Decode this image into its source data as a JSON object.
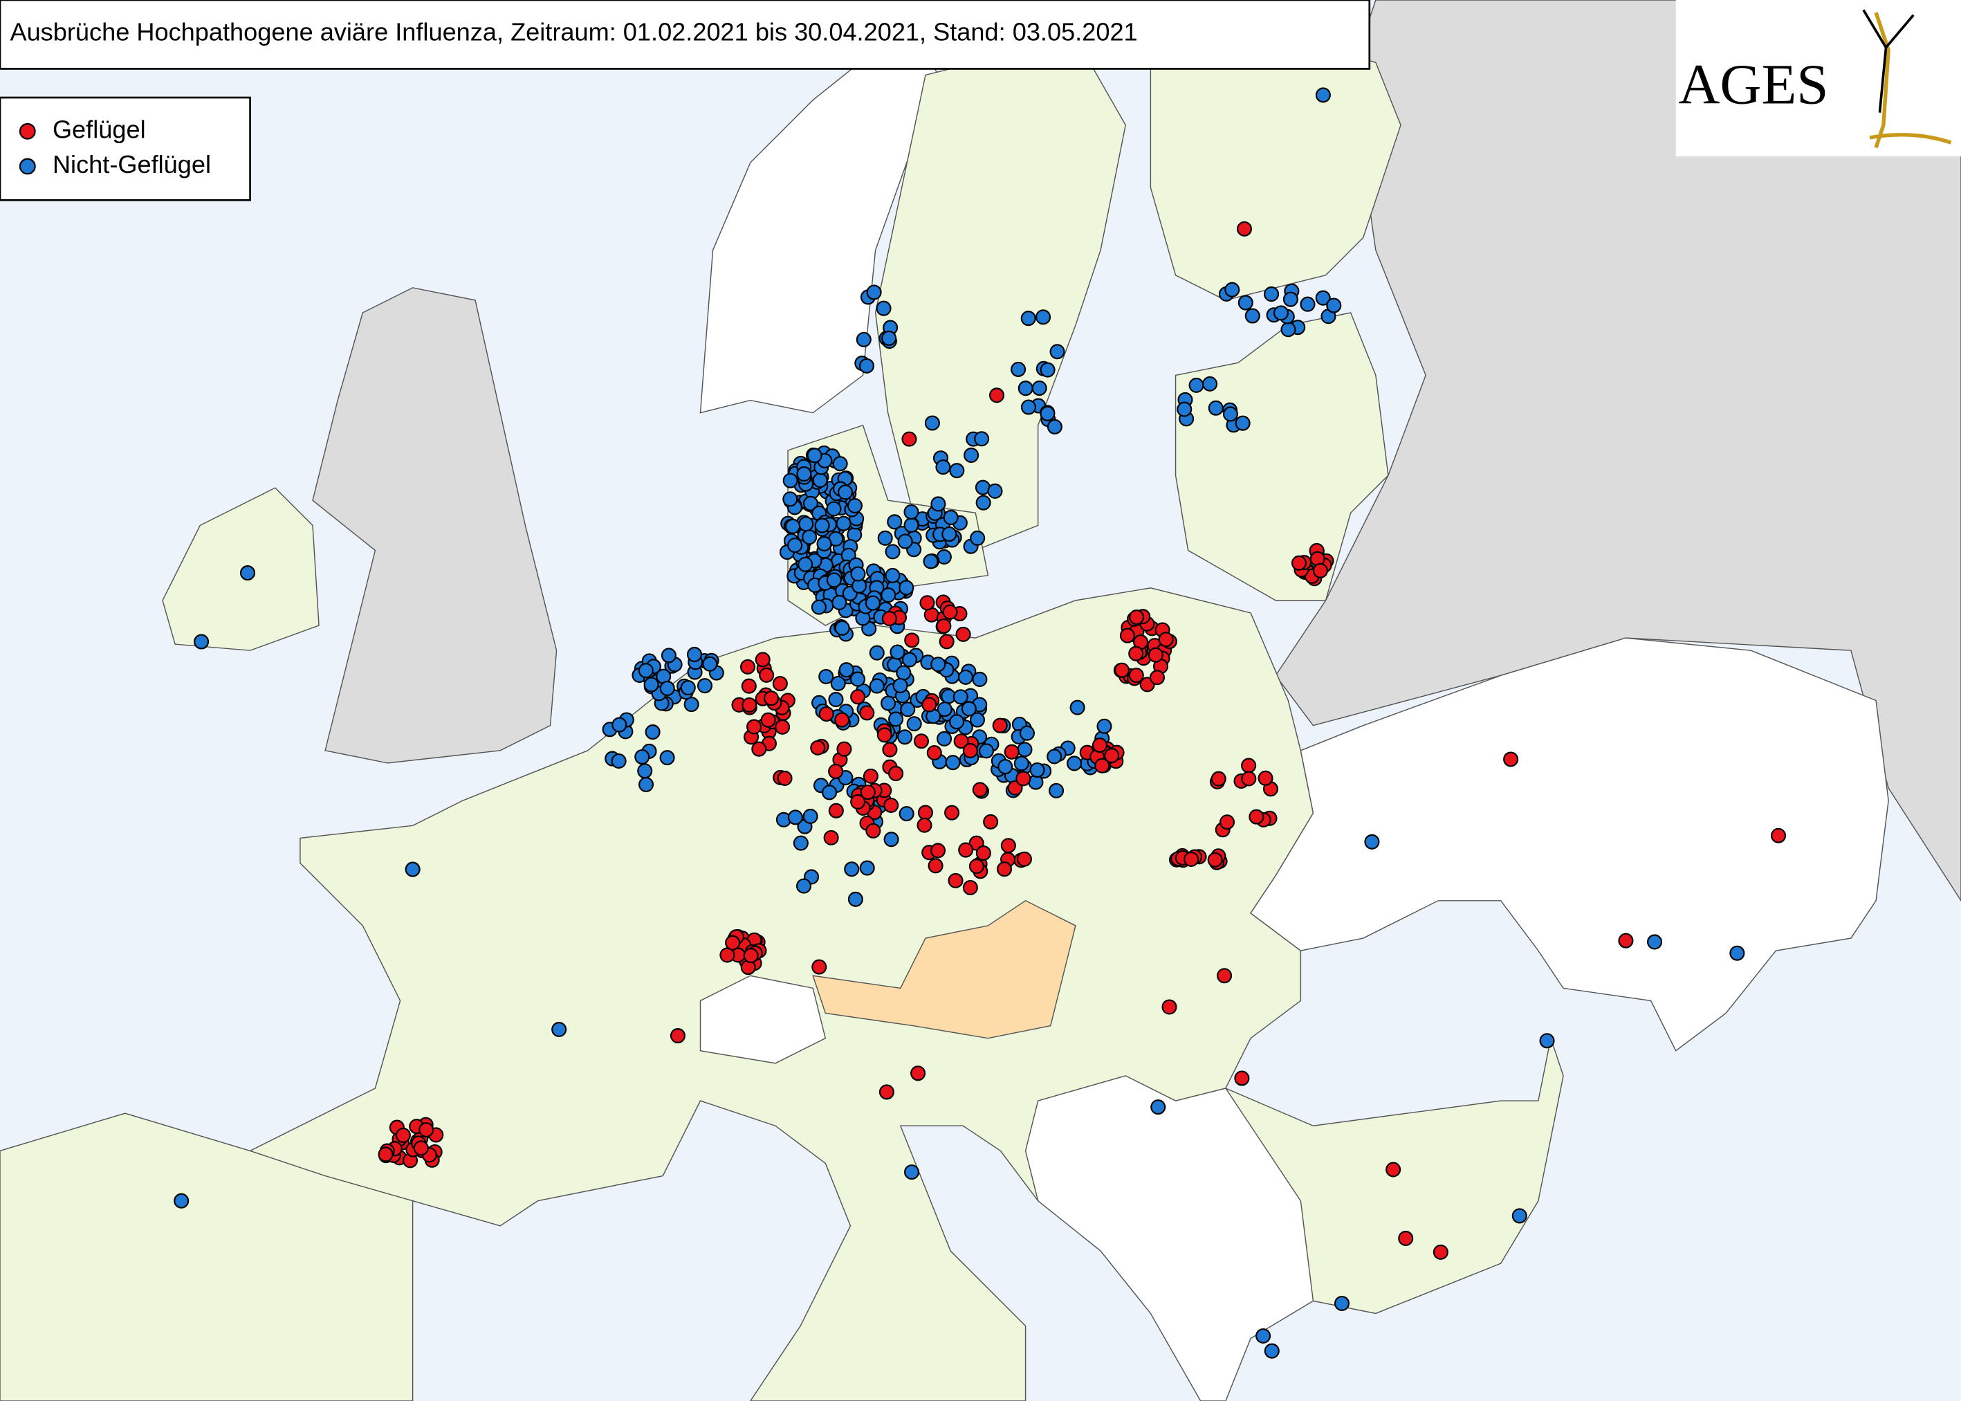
{
  "title": "Ausbrüche Hochpathogene aviäre Influenza, Zeitraum: 01.02.2021 bis 30.04.2021, Stand: 03.05.2021",
  "legend": {
    "items": [
      {
        "label": "Geflügel",
        "color": "#e8141c"
      },
      {
        "label": "Nicht-Geflügel",
        "color": "#1f78d4"
      }
    ]
  },
  "logo": {
    "text": "AGES"
  }
}
